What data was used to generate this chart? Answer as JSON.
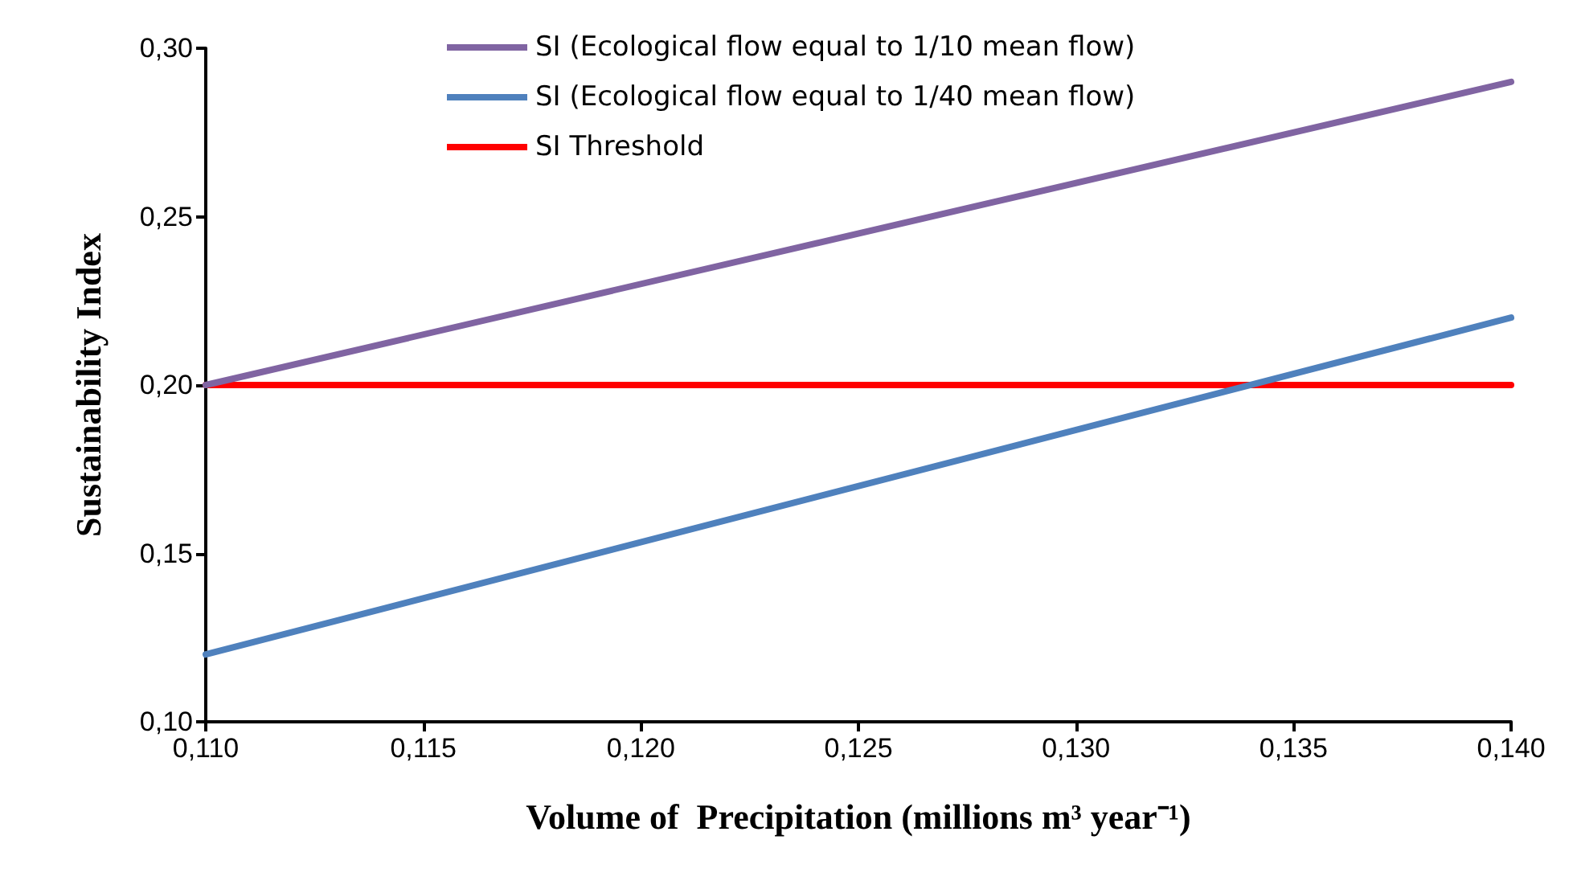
{
  "chart_data": {
    "type": "line",
    "xlabel": "Volume of  Precipitation (millions m³ year⁻¹)",
    "ylabel": "Sustainability Index",
    "x": [
      0.11,
      0.14
    ],
    "series": [
      {
        "name": "SI (Ecological flow equal to 1/10 mean flow)",
        "color": "#8064a2",
        "values": [
          0.2,
          0.29
        ]
      },
      {
        "name": "SI (Ecological flow equal to 1/40 mean flow)",
        "color": "#4f81bd",
        "values": [
          0.12,
          0.22
        ]
      },
      {
        "name": "SI Threshold",
        "color": "#ff0000",
        "values": [
          0.2,
          0.2
        ]
      }
    ],
    "xlim": [
      0.11,
      0.14
    ],
    "xticks": [
      {
        "value": 0.11,
        "label": "0,110"
      },
      {
        "value": 0.115,
        "label": "0,115"
      },
      {
        "value": 0.12,
        "label": "0,120"
      },
      {
        "value": 0.125,
        "label": "0,125"
      },
      {
        "value": 0.13,
        "label": "0,130"
      },
      {
        "value": 0.135,
        "label": "0,135"
      },
      {
        "value": 0.14,
        "label": "0,140"
      }
    ],
    "ylim": [
      0.1,
      0.3
    ],
    "yticks": [
      {
        "value": 0.1,
        "label": "0,10"
      },
      {
        "value": 0.15,
        "label": "0,15"
      },
      {
        "value": 0.2,
        "label": "0,20"
      },
      {
        "value": 0.25,
        "label": "0,25"
      },
      {
        "value": 0.3,
        "label": "0,30"
      }
    ],
    "grid": false,
    "legend": "top",
    "marker": "none",
    "line_style": "solid"
  }
}
